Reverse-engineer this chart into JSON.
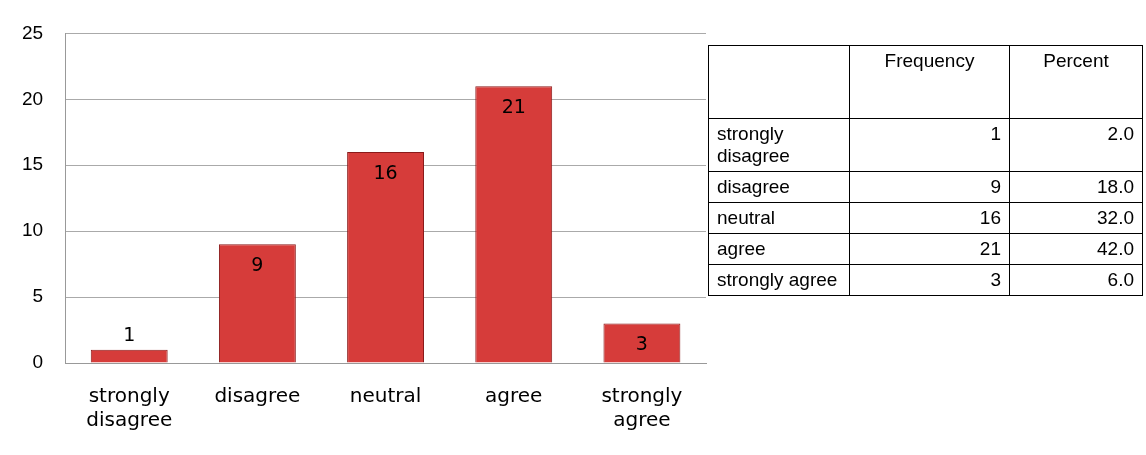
{
  "chart_data": [
    {
      "type": "bar",
      "categories": [
        "strongly disagree",
        "disagree",
        "neutral",
        "agree",
        "strongly agree"
      ],
      "values": [
        1,
        9,
        16,
        21,
        3
      ],
      "color": "#d63c3a",
      "ylim": [
        0,
        25
      ],
      "yticks": [
        0,
        5,
        10,
        15,
        20,
        25
      ],
      "grid": "y",
      "legend": false,
      "data_labels": true
    },
    {
      "type": "other",
      "categories": [
        "strongly disagree",
        "disagree",
        "neutral",
        "agree",
        "strongly agree"
      ],
      "series": [
        {
          "name": "Frequency",
          "values": [
            1,
            9,
            16,
            21,
            3
          ],
          "value_labels": [
            "1",
            "9",
            "16",
            "21",
            "3"
          ]
        },
        {
          "name": "Percent",
          "values": [
            2.0,
            18.0,
            32.0,
            42.0,
            6.0
          ],
          "value_labels": [
            "2.0",
            "18.0",
            "32.0",
            "42.0",
            "6.0"
          ]
        }
      ]
    }
  ]
}
